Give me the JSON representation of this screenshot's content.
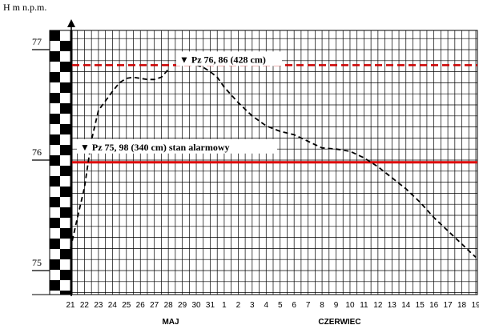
{
  "chart_data": {
    "type": "line",
    "ylabel": "H  m n.p.m.",
    "ylim": [
      75,
      77
    ],
    "y_ticks": [
      "75",
      "76",
      "77"
    ],
    "x_ticks": [
      "21",
      "22",
      "23",
      "24",
      "25",
      "26",
      "27",
      "28",
      "29",
      "30",
      "31",
      "1",
      "2",
      "3",
      "4",
      "5",
      "6",
      "7",
      "8",
      "9",
      "10",
      "11",
      "12",
      "13",
      "14",
      "15",
      "16",
      "17",
      "18",
      "19"
    ],
    "month_labels": [
      "MAJ",
      "CZERWIEC"
    ],
    "reference_lines": [
      {
        "value": 76.86,
        "label": "▼  Pz 76, 86  (428 cm)",
        "color": "#cc0000",
        "style": "dashed"
      },
      {
        "value": 75.98,
        "label": "▼  Pz 75, 98  (340 cm) stan alarmowy",
        "color": "#dd0000",
        "style": "solid"
      }
    ],
    "series": [
      {
        "x": [
          21,
          21.5,
          22,
          22.5,
          23,
          24,
          24.5,
          25,
          25.5,
          26,
          26.5,
          27,
          27.5,
          28,
          30,
          30.5,
          31,
          31.5,
          32,
          33,
          34,
          35,
          36,
          37,
          38,
          39,
          40,
          41,
          42,
          43,
          44,
          45,
          46,
          47,
          48,
          49,
          49.5,
          50
        ],
        "y": [
          75.2,
          75.48,
          75.75,
          76.18,
          76.45,
          76.62,
          76.7,
          76.74,
          76.75,
          76.74,
          76.73,
          76.73,
          76.75,
          76.82,
          76.86,
          76.84,
          76.8,
          76.75,
          76.66,
          76.52,
          76.4,
          76.31,
          76.26,
          76.23,
          76.17,
          76.11,
          76.1,
          76.08,
          76.02,
          75.94,
          75.84,
          75.74,
          75.62,
          75.48,
          75.36,
          75.24,
          75.18,
          75.12
        ],
        "color": "#000000",
        "style": "dashed"
      }
    ]
  }
}
